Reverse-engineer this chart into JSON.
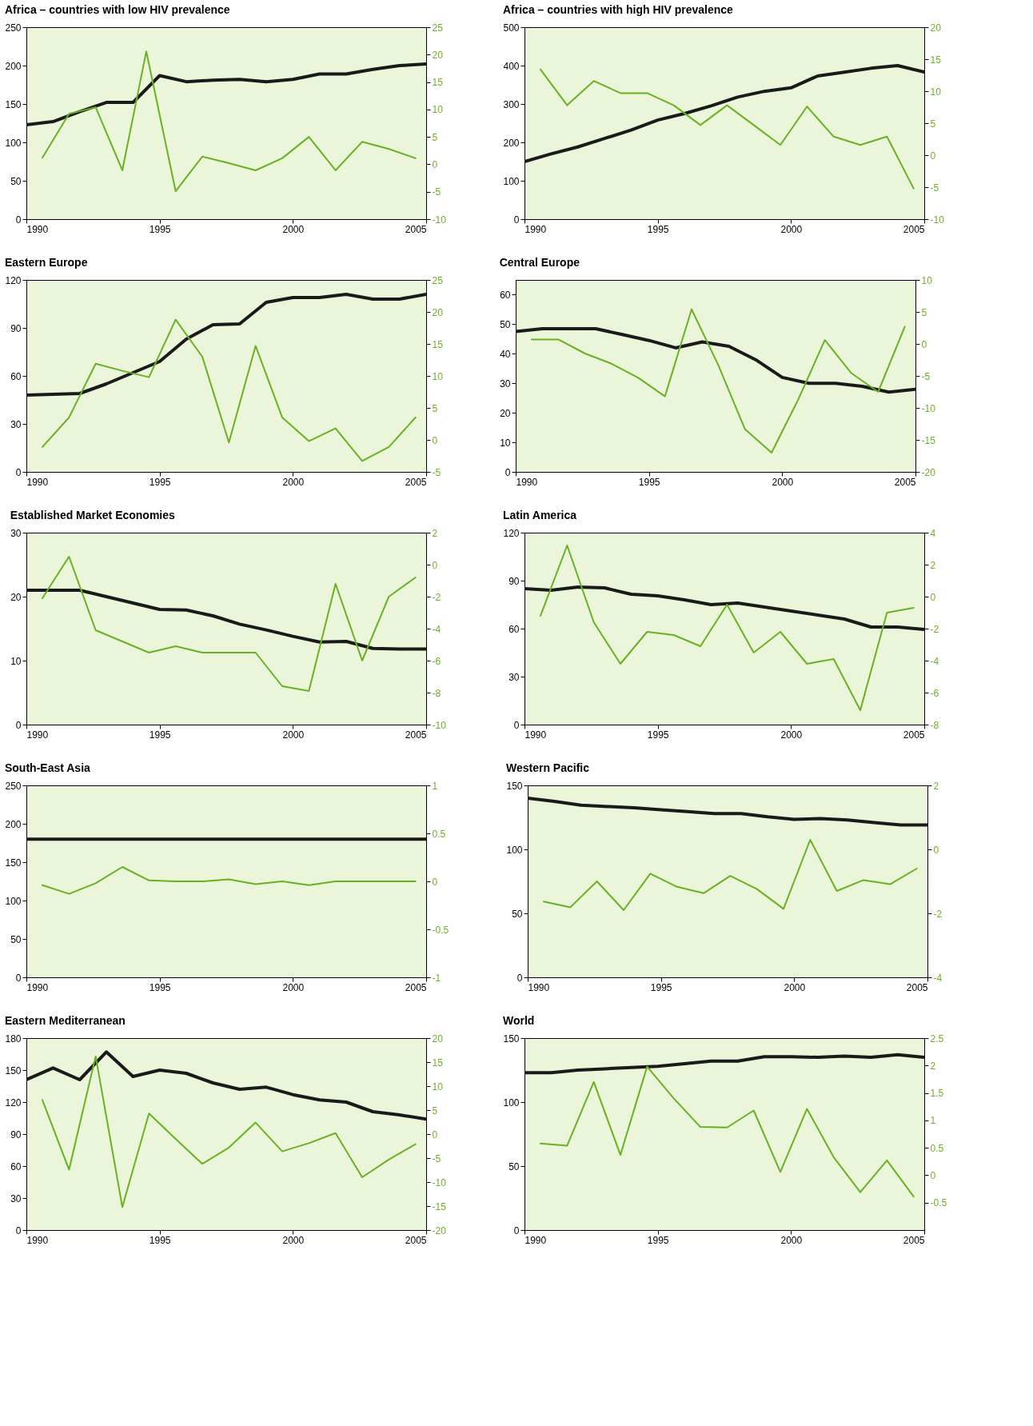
{
  "chart_data": [
    {
      "type": "line",
      "title": "Africa – countries with low HIV prevalence",
      "xlim": [
        1990,
        2005
      ],
      "xticks": [
        1990,
        1995,
        2000,
        2005
      ],
      "ylim": [
        0,
        250
      ],
      "yticks": [
        0,
        50,
        100,
        150,
        200,
        250
      ],
      "y2lim": [
        -10,
        25
      ],
      "y2ticks": [
        -10,
        -5,
        0,
        5,
        10,
        15,
        20,
        25
      ],
      "series": [
        {
          "color": "#1a1a1a",
          "x": [
            1990,
            1991,
            1992,
            1993,
            1994,
            1995,
            1996,
            1997,
            1998,
            1999,
            2000,
            2001,
            2002,
            2003,
            2004,
            2005
          ],
          "values": [
            123,
            127,
            140,
            152,
            152,
            187,
            179,
            181,
            182,
            179,
            182,
            189,
            189,
            195,
            200,
            202
          ]
        },
        {
          "color": "#6ab023",
          "axis": "y2",
          "x": [
            1990.6,
            1991.6,
            1992.6,
            1993.6,
            1994.5,
            1995.6,
            1996.6,
            1997.6,
            1998.6,
            1999.6,
            2000.6,
            2001.6,
            2002.6,
            2003.6,
            2004.6
          ],
          "values": [
            1.2,
            9.2,
            10.4,
            -1.1,
            20.6,
            -4.9,
            1.4,
            0.2,
            -1.1,
            1.1,
            5,
            -1.1,
            4.1,
            2.8,
            1.1
          ]
        }
      ]
    },
    {
      "type": "line",
      "title": "Africa – countries with high HIV prevalence",
      "xlim": [
        1990,
        2005
      ],
      "xticks": [
        1990,
        1995,
        2000,
        2005
      ],
      "ylim": [
        0,
        500
      ],
      "yticks": [
        0,
        100,
        200,
        300,
        400,
        500
      ],
      "y2lim": [
        -10,
        20
      ],
      "y2ticks": [
        -10,
        -5,
        0,
        5,
        10,
        15,
        20
      ],
      "series": [
        {
          "color": "#1a1a1a",
          "x": [
            1990,
            1991,
            1992,
            1993,
            1994,
            1995,
            1996,
            1997,
            1998,
            1999,
            2000,
            2001,
            2002,
            2003,
            2004,
            2005
          ],
          "values": [
            150,
            170,
            188,
            210,
            232,
            258,
            275,
            295,
            318,
            333,
            342,
            373,
            383,
            393,
            400,
            383
          ]
        },
        {
          "color": "#6ab023",
          "axis": "y2",
          "x": [
            1990.6,
            1991.6,
            1992.6,
            1993.6,
            1994.6,
            1995.6,
            1996.6,
            1997.6,
            1998.6,
            1999.6,
            2000.6,
            2001.6,
            2002.6,
            2003.6,
            2004.6
          ],
          "values": [
            13.4,
            7.8,
            11.6,
            9.7,
            9.7,
            7.8,
            4.7,
            7.8,
            4.7,
            1.6,
            7.6,
            2.9,
            1.6,
            2.9,
            -5.2
          ]
        }
      ]
    },
    {
      "type": "line",
      "title": "Eastern Europe",
      "xlim": [
        1990,
        2005
      ],
      "xticks": [
        1990,
        1995,
        2000,
        2005
      ],
      "ylim": [
        0,
        120
      ],
      "yticks": [
        0,
        30,
        60,
        90,
        120
      ],
      "y2lim": [
        -5,
        25
      ],
      "y2ticks": [
        -5,
        0,
        5,
        10,
        15,
        20,
        25
      ],
      "series": [
        {
          "color": "#1a1a1a",
          "x": [
            1990,
            1991,
            1992,
            1993,
            1994,
            1995,
            1996,
            1997,
            1998,
            1999,
            2000,
            2001,
            2002,
            2003,
            2004,
            2005
          ],
          "values": [
            48,
            48.5,
            49,
            55,
            62,
            69,
            83,
            92,
            92.5,
            106,
            109,
            109,
            111,
            108,
            108,
            111
          ]
        },
        {
          "color": "#6ab023",
          "axis": "y2",
          "x": [
            1990.6,
            1991.6,
            1992.6,
            1993.6,
            1994.6,
            1995.6,
            1996.6,
            1997.6,
            1998.6,
            1999.6,
            2000.6,
            2001.6,
            2002.6,
            2003.6,
            2004.6
          ],
          "values": [
            -1.1,
            3.5,
            11.9,
            10.8,
            9.8,
            18.8,
            13,
            -0.4,
            14.7,
            3.5,
            -0.2,
            1.8,
            -3.3,
            -1.1,
            3.5
          ]
        }
      ]
    },
    {
      "type": "line",
      "title": "Central Europe",
      "xlim": [
        1990,
        2005
      ],
      "xticks": [
        1990,
        1995,
        2000,
        2005
      ],
      "ylim": [
        0,
        65
      ],
      "yticks": [
        0,
        10,
        20,
        30,
        40,
        50,
        60
      ],
      "y2lim": [
        -20,
        10
      ],
      "y2ticks": [
        -20,
        -15,
        -10,
        -5,
        0,
        5,
        10
      ],
      "series": [
        {
          "color": "#1a1a1a",
          "x": [
            1990,
            1991,
            1992,
            1993,
            1994,
            1995,
            1996,
            1997,
            1998,
            1999,
            2000,
            2001,
            2002,
            2003,
            2004,
            2005
          ],
          "values": [
            47.5,
            48.5,
            48.5,
            48.5,
            46.5,
            44.5,
            42,
            44,
            42.5,
            38,
            32,
            30,
            30,
            29,
            27,
            28
          ]
        },
        {
          "color": "#6ab023",
          "axis": "y2",
          "x": [
            1990.6,
            1991.6,
            1992.6,
            1993.6,
            1994.6,
            1995.6,
            1996.6,
            1997.6,
            1998.6,
            1999.6,
            2000.6,
            2001.6,
            2002.6,
            2003.6,
            2004.6
          ],
          "values": [
            0.7,
            0.7,
            -1.5,
            -3.1,
            -5.3,
            -8.2,
            5.4,
            -3.3,
            -13.3,
            -17,
            -8.7,
            0.6,
            -4.6,
            -7.5,
            2.7
          ]
        }
      ]
    },
    {
      "type": "line",
      "title": "Established Market Economies",
      "xlim": [
        1990,
        2005
      ],
      "xticks": [
        1990,
        1995,
        2000,
        2005
      ],
      "ylim": [
        0,
        30
      ],
      "yticks": [
        0,
        10,
        20,
        30
      ],
      "y2lim": [
        -10,
        2
      ],
      "y2ticks": [
        -10,
        -8,
        -6,
        -4,
        -2,
        0,
        2
      ],
      "series": [
        {
          "color": "#1a1a1a",
          "x": [
            1990,
            1991,
            1992,
            1993,
            1994,
            1995,
            1996,
            1997,
            1998,
            1999,
            2000,
            2001,
            2002,
            2003,
            2004,
            2005
          ],
          "values": [
            21,
            21,
            21,
            20,
            19,
            18,
            17.9,
            17,
            15.7,
            14.8,
            13.8,
            12.9,
            13,
            11.9,
            11.8,
            11.8
          ]
        },
        {
          "color": "#6ab023",
          "axis": "y2",
          "x": [
            1990.6,
            1991.6,
            1992.6,
            1993.6,
            1994.6,
            1995.6,
            1996.6,
            1997.6,
            1998.6,
            1999.6,
            2000.6,
            2001.6,
            2002.6,
            2003.6,
            2004.6
          ],
          "values": [
            -2.1,
            0.5,
            -4.1,
            -4.8,
            -5.5,
            -5.1,
            -5.5,
            -5.5,
            -5.5,
            -7.6,
            -7.9,
            -1.2,
            -6,
            -2,
            -0.8
          ]
        }
      ]
    },
    {
      "type": "line",
      "title": "Latin America",
      "xlim": [
        1990,
        2005
      ],
      "xticks": [
        1990,
        1995,
        2000,
        2005
      ],
      "ylim": [
        0,
        120
      ],
      "yticks": [
        0,
        30,
        60,
        90,
        120
      ],
      "y2lim": [
        -8,
        4
      ],
      "y2ticks": [
        -8,
        -6,
        -4,
        -2,
        0,
        2,
        4
      ],
      "series": [
        {
          "color": "#1a1a1a",
          "x": [
            1990,
            1991,
            1992,
            1993,
            1994,
            1995,
            1996,
            1997,
            1998,
            1999,
            2000,
            2001,
            2002,
            2003,
            2004,
            2005
          ],
          "values": [
            85,
            84,
            86,
            85.5,
            81.5,
            80.5,
            78,
            75,
            76,
            73.5,
            71,
            68.5,
            66,
            61,
            61,
            59.5
          ]
        },
        {
          "color": "#6ab023",
          "axis": "y2",
          "x": [
            1990.6,
            1991.6,
            1992.6,
            1993.6,
            1994.6,
            1995.6,
            1996.6,
            1997.6,
            1998.6,
            1999.6,
            2000.6,
            2001.6,
            2002.6,
            2003.6,
            2004.6
          ],
          "values": [
            -1.2,
            3.2,
            -1.6,
            -4.2,
            -2.2,
            -2.4,
            -3.1,
            -0.5,
            -3.5,
            -2.2,
            -4.2,
            -3.9,
            -7.1,
            -1,
            -0.7
          ]
        }
      ]
    },
    {
      "type": "line",
      "title": "South-East Asia",
      "xlim": [
        1990,
        2005
      ],
      "xticks": [
        1990,
        1995,
        2000,
        2005
      ],
      "ylim": [
        0,
        250
      ],
      "yticks": [
        0,
        50,
        100,
        150,
        200,
        250
      ],
      "y2lim": [
        -1,
        1
      ],
      "y2ticks": [
        -1,
        -0.5,
        0,
        0.5,
        1
      ],
      "series": [
        {
          "color": "#1a1a1a",
          "x": [
            1990,
            1991,
            1992,
            1993,
            1994,
            1995,
            1996,
            1997,
            1998,
            1999,
            2000,
            2001,
            2002,
            2003,
            2004,
            2005
          ],
          "values": [
            180,
            180,
            180,
            180,
            180,
            180,
            180,
            180,
            180,
            180,
            180,
            180,
            180,
            180,
            180,
            180
          ]
        },
        {
          "color": "#6ab023",
          "axis": "y2",
          "x": [
            1990.6,
            1991.6,
            1992.6,
            1993.6,
            1994.6,
            1995.6,
            1996.6,
            1997.6,
            1998.6,
            1999.6,
            2000.6,
            2001.6,
            2002.6,
            2003.6,
            2004.6
          ],
          "values": [
            -0.04,
            -0.13,
            -0.02,
            0.15,
            0.01,
            0,
            0,
            0.02,
            -0.03,
            0,
            -0.04,
            0,
            0,
            0,
            0
          ]
        }
      ]
    },
    {
      "type": "line",
      "title": "Western Pacific",
      "xlim": [
        1990,
        2005
      ],
      "xticks": [
        1990,
        1995,
        2000,
        2005
      ],
      "ylim": [
        0,
        150
      ],
      "yticks": [
        0,
        50,
        100,
        150
      ],
      "y2lim": [
        -4,
        2
      ],
      "y2ticks": [
        -4,
        -2,
        0,
        2
      ],
      "series": [
        {
          "color": "#1a1a1a",
          "x": [
            1990,
            1991,
            1992,
            1993,
            1994,
            1995,
            1996,
            1997,
            1998,
            1999,
            2000,
            2001,
            2002,
            2003,
            2004,
            2005
          ],
          "values": [
            140,
            137.5,
            134.5,
            133.5,
            132.5,
            131,
            129.5,
            128,
            128,
            125.5,
            123.5,
            124,
            123,
            121,
            119,
            119
          ]
        },
        {
          "color": "#6ab023",
          "axis": "y2",
          "x": [
            1990.6,
            1991.6,
            1992.6,
            1993.6,
            1994.6,
            1995.6,
            1996.6,
            1997.6,
            1998.6,
            1999.6,
            2000.6,
            2001.6,
            2002.6,
            2003.6,
            2004.6
          ],
          "values": [
            -1.63,
            -1.81,
            -1,
            -1.9,
            -0.76,
            -1.17,
            -1.37,
            -0.83,
            -1.24,
            -1.86,
            0.3,
            -1.3,
            -0.96,
            -1.09,
            -0.6
          ]
        }
      ]
    },
    {
      "type": "line",
      "title": "Eastern Mediterranean",
      "xlim": [
        1990,
        2005
      ],
      "xticks": [
        1990,
        1995,
        2000,
        2005
      ],
      "ylim": [
        0,
        180
      ],
      "yticks": [
        0,
        30,
        60,
        90,
        120,
        150,
        180
      ],
      "y2lim": [
        -20,
        20
      ],
      "y2ticks": [
        -20,
        -15,
        -10,
        -5,
        0,
        5,
        10,
        15,
        20
      ],
      "series": [
        {
          "color": "#1a1a1a",
          "x": [
            1990,
            1991,
            1992,
            1993,
            1994,
            1995,
            1996,
            1997,
            1998,
            1999,
            2000,
            2001,
            2002,
            2003,
            2004,
            2005
          ],
          "values": [
            141,
            152,
            141,
            167,
            144,
            150,
            147,
            138,
            132,
            134,
            127,
            122,
            120,
            111,
            108,
            104
          ]
        },
        {
          "color": "#6ab023",
          "axis": "y2",
          "x": [
            1990.6,
            1991.6,
            1992.6,
            1993.6,
            1994.6,
            1995.6,
            1996.6,
            1997.6,
            1998.6,
            1999.6,
            2000.6,
            2001.6,
            2002.6,
            2003.6,
            2004.6
          ],
          "values": [
            7.1,
            -7.4,
            16.2,
            -15.2,
            4.3,
            -1,
            -6.2,
            -2.8,
            2.4,
            -3.6,
            -1.9,
            0.2,
            -9,
            -5.3,
            -2.1
          ]
        }
      ]
    },
    {
      "type": "line",
      "title": "World",
      "xlim": [
        1990,
        2005
      ],
      "xticks": [
        1990,
        1995,
        2000,
        2005
      ],
      "ylim": [
        0,
        150
      ],
      "yticks": [
        0,
        50,
        100,
        150
      ],
      "y2lim": [
        -1,
        2.5
      ],
      "y2ticks": [
        -0.5,
        0,
        0.5,
        1,
        1.5,
        2,
        2.5
      ],
      "series": [
        {
          "color": "#1a1a1a",
          "x": [
            1990,
            1991,
            1992,
            1993,
            1994,
            1995,
            1996,
            1997,
            1998,
            1999,
            2000,
            2001,
            2002,
            2003,
            2004,
            2005
          ],
          "values": [
            123,
            123,
            125,
            126,
            127,
            128,
            130,
            132,
            132,
            135.5,
            135.5,
            135,
            136,
            135,
            137,
            135
          ]
        },
        {
          "color": "#6ab023",
          "axis": "y2",
          "x": [
            1990.6,
            1991.6,
            1992.6,
            1993.6,
            1994.6,
            1995.6,
            1996.6,
            1997.6,
            1998.6,
            1999.6,
            2000.6,
            2001.6,
            2002.6,
            2003.6,
            2004.6
          ],
          "values": [
            0.58,
            0.54,
            1.7,
            0.37,
            1.98,
            1.4,
            0.88,
            0.87,
            1.18,
            0.06,
            1.21,
            0.33,
            -0.31,
            0.27,
            -0.39
          ]
        }
      ]
    }
  ]
}
